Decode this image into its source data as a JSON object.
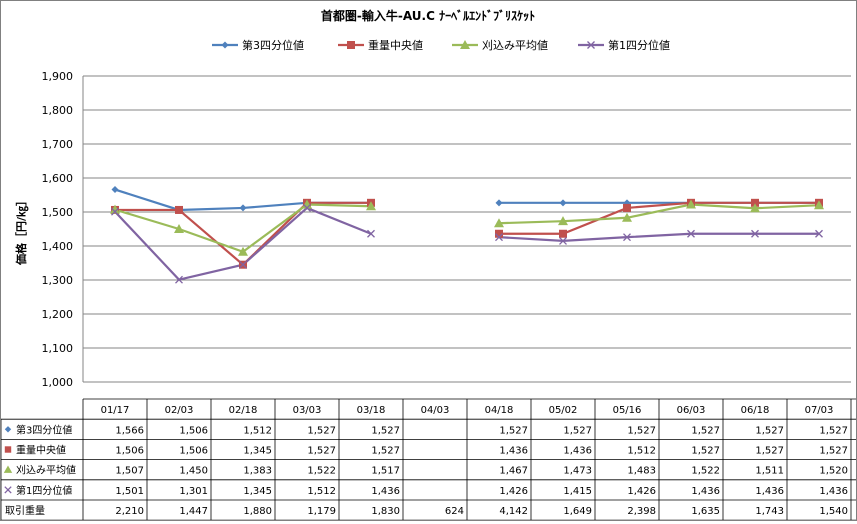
{
  "chart_data": {
    "type": "line",
    "title": "首都圏-輸入牛-AU.C ﾅｰﾍﾞﾙｴﾝﾄﾞﾌﾞﾘｽｹｯﾄ",
    "ylabel": "価格［円/㎏］",
    "xlabel": "",
    "ylim": [
      1000,
      1900
    ],
    "yticks": [
      "1,000",
      "1,100",
      "1,200",
      "1,300",
      "1,400",
      "1,500",
      "1,600",
      "1,700",
      "1,800",
      "1,900"
    ],
    "grid": true,
    "legend_position": "top",
    "categories": [
      "01/17",
      "02/03",
      "02/18",
      "03/03",
      "03/18",
      "04/03",
      "04/18",
      "05/02",
      "05/16",
      "06/03",
      "06/18",
      "07/03"
    ],
    "series": [
      {
        "name": "第3四分位値",
        "color": "#4F81BD",
        "marker": "diamond",
        "values": [
          1566,
          1506,
          1512,
          1527,
          1527,
          null,
          1527,
          1527,
          1527,
          1527,
          1527,
          1527
        ],
        "labels": [
          "1,566",
          "1,506",
          "1,512",
          "1,527",
          "1,527",
          "",
          "1,527",
          "1,527",
          "1,527",
          "1,527",
          "1,527",
          "1,527"
        ]
      },
      {
        "name": "重量中央値",
        "color": "#C0504D",
        "marker": "square",
        "values": [
          1506,
          1506,
          1345,
          1527,
          1527,
          null,
          1436,
          1436,
          1512,
          1527,
          1527,
          1527
        ],
        "labels": [
          "1,506",
          "1,506",
          "1,345",
          "1,527",
          "1,527",
          "",
          "1,436",
          "1,436",
          "1,512",
          "1,527",
          "1,527",
          "1,527"
        ]
      },
      {
        "name": "刈込み平均値",
        "color": "#9BBB59",
        "marker": "triangle",
        "values": [
          1507,
          1450,
          1383,
          1522,
          1517,
          null,
          1467,
          1473,
          1483,
          1522,
          1511,
          1520
        ],
        "labels": [
          "1,507",
          "1,450",
          "1,383",
          "1,522",
          "1,517",
          "",
          "1,467",
          "1,473",
          "1,483",
          "1,522",
          "1,511",
          "1,520"
        ]
      },
      {
        "name": "第1四分位値",
        "color": "#8064A2",
        "marker": "x",
        "values": [
          1501,
          1301,
          1345,
          1512,
          1436,
          null,
          1426,
          1415,
          1426,
          1436,
          1436,
          1436
        ],
        "labels": [
          "1,501",
          "1,301",
          "1,345",
          "1,512",
          "1,436",
          "",
          "1,426",
          "1,415",
          "1,426",
          "1,436",
          "1,436",
          "1,436"
        ]
      }
    ],
    "extra_row": {
      "name": "取引重量",
      "labels": [
        "2,210",
        "1,447",
        "1,880",
        "1,179",
        "1,830",
        "624",
        "4,142",
        "1,649",
        "2,398",
        "1,635",
        "1,743",
        "1,540"
      ]
    }
  }
}
